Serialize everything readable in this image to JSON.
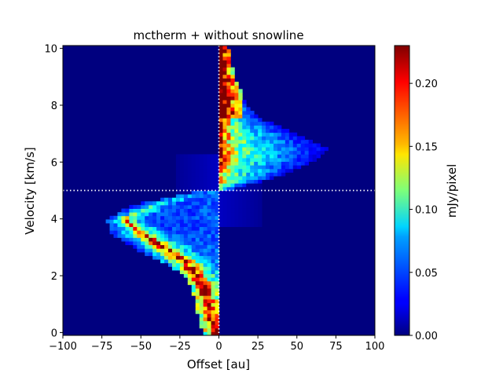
{
  "chart_data": {
    "type": "heatmap",
    "title": "mctherm + without snowline",
    "xlabel": "Offset [au]",
    "ylabel": "Velocity [km/s]",
    "xlim": [
      -100,
      100
    ],
    "ylim": [
      -0.1,
      10.1
    ],
    "x_ticks": [
      -100,
      -75,
      -50,
      -25,
      0,
      25,
      50,
      75,
      100
    ],
    "x_tick_labels": [
      "−100",
      "−75",
      "−50",
      "−25",
      "0",
      "25",
      "50",
      "75",
      "100"
    ],
    "y_ticks": [
      0,
      2,
      4,
      6,
      8,
      10
    ],
    "y_tick_labels": [
      "0",
      "2",
      "4",
      "6",
      "8",
      "10"
    ],
    "colormap": "jet",
    "colorbar": {
      "label": "mJy/pixel",
      "range": [
        0,
        0.23
      ],
      "ticks": [
        0.0,
        0.05,
        0.1,
        0.15,
        0.2
      ],
      "tick_labels": [
        "0.00",
        "0.05",
        "0.10",
        "0.15",
        "0.20"
      ]
    },
    "reference_lines": [
      {
        "orientation": "vertical",
        "value": 0,
        "style": "dotted",
        "color": "#ffffff"
      },
      {
        "orientation": "horizontal",
        "value": 5,
        "style": "dotted",
        "color": "#ffffff"
      }
    ],
    "grid": false,
    "background_color": "#00007f",
    "intensity_profile": {
      "description_type": "keplerian-butterfly",
      "ridge_peak": 0.23,
      "max_offset_at_velocity": [
        [
          5.0,
          5
        ],
        [
          5.5,
          40
        ],
        [
          6.0,
          60
        ],
        [
          6.5,
          70
        ],
        [
          7.0,
          50
        ],
        [
          7.5,
          28
        ],
        [
          8.0,
          18
        ],
        [
          9.0,
          10
        ],
        [
          10.0,
          6
        ]
      ],
      "ridge_points": [
        [
          0.0,
          2
        ],
        [
          0.5,
          5
        ],
        [
          1.0,
          7
        ],
        [
          1.5,
          9
        ],
        [
          2.0,
          14
        ],
        [
          2.5,
          22
        ],
        [
          3.0,
          35
        ],
        [
          3.5,
          50
        ],
        [
          4.0,
          60
        ],
        [
          4.5,
          40
        ],
        [
          5.0,
          5
        ]
      ]
    }
  }
}
